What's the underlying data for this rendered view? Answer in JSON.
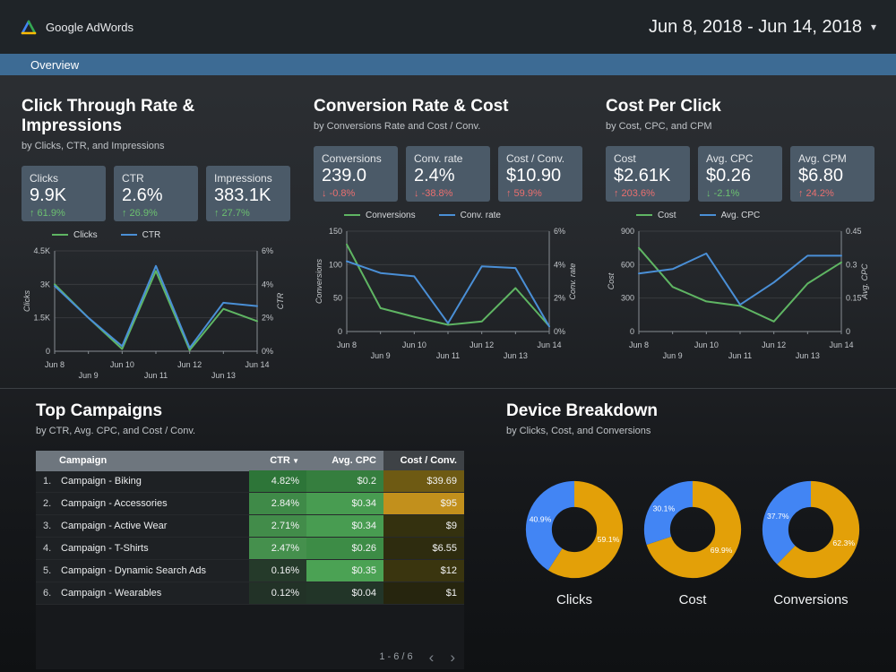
{
  "topbar": {
    "brand": "Google AdWords",
    "date_range": "Jun 8, 2018 - Jun 14, 2018"
  },
  "tab": {
    "label": "Overview"
  },
  "theme": {
    "tab_blue": "#3d6b94",
    "card_bg": "#4b5a68",
    "positive_green": "#6cc070",
    "negative_red": "#ea6f6f",
    "chart_green": "#5fb563",
    "chart_blue": "#4a8fd6",
    "donut_gold": "#e3a008",
    "donut_blue": "#4285f4",
    "panel_bg": "#17191c",
    "table_header_gray": "#6e767e"
  },
  "sections": [
    {
      "title": "Click Through Rate & Impressions",
      "subtitle": "by Clicks, CTR, and Impressions",
      "scorecards": [
        {
          "label": "Clicks",
          "value": "9.9K",
          "delta": "61.9%",
          "direction": "up",
          "sentiment": "positive"
        },
        {
          "label": "CTR",
          "value": "2.6%",
          "delta": "26.9%",
          "direction": "up",
          "sentiment": "positive"
        },
        {
          "label": "Impressions",
          "value": "383.1K",
          "delta": "27.7%",
          "direction": "up",
          "sentiment": "positive"
        }
      ]
    },
    {
      "title": "Conversion Rate & Cost",
      "subtitle": "by Conversions Rate and Cost / Conv.",
      "scorecards": [
        {
          "label": "Conversions",
          "value": "239.0",
          "delta": "-0.8%",
          "direction": "down",
          "sentiment": "negative"
        },
        {
          "label": "Conv. rate",
          "value": "2.4%",
          "delta": "-38.8%",
          "direction": "down",
          "sentiment": "negative"
        },
        {
          "label": "Cost / Conv.",
          "value": "$10.90",
          "delta": "59.9%",
          "direction": "up",
          "sentiment": "negative"
        }
      ]
    },
    {
      "title": "Cost Per Click",
      "subtitle": "by Cost, CPC, and CPM",
      "scorecards": [
        {
          "label": "Cost",
          "value": "$2.61K",
          "delta": "203.6%",
          "direction": "up",
          "sentiment": "negative"
        },
        {
          "label": "Avg. CPC",
          "value": "$0.26",
          "delta": "-2.1%",
          "direction": "down",
          "sentiment": "positive"
        },
        {
          "label": "Avg. CPM",
          "value": "$6.80",
          "delta": "24.2%",
          "direction": "up",
          "sentiment": "negative"
        }
      ]
    }
  ],
  "bottom": {
    "campaigns_title": "Top Campaigns",
    "campaigns_subtitle": "by CTR, Avg. CPC, and Cost / Conv.",
    "devices_title": "Device Breakdown",
    "devices_subtitle": "by Clicks, Cost, and Conversions"
  },
  "chart_data": [
    {
      "id": "clicks_ctr_trend",
      "type": "line",
      "x": [
        "Jun 8",
        "Jun 9",
        "Jun 10",
        "Jun 11",
        "Jun 12",
        "Jun 13",
        "Jun 14"
      ],
      "series": [
        {
          "name": "Clicks",
          "axis": "left",
          "color": "#5fb563",
          "values": [
            3000,
            1500,
            100,
            3600,
            50,
            1900,
            1350
          ]
        },
        {
          "name": "CTR",
          "axis": "right",
          "color": "#4a8fd6",
          "values": [
            3.9,
            2.0,
            0.3,
            5.1,
            0.2,
            2.9,
            2.7
          ]
        }
      ],
      "left_axis": {
        "title": "Clicks",
        "min": 0,
        "max": 4500,
        "ticks": [
          "0",
          "1.5K",
          "3K",
          "4.5K"
        ]
      },
      "right_axis": {
        "title": "CTR",
        "min": 0,
        "max": 6,
        "ticks": [
          "0%",
          "2%",
          "4%",
          "6%"
        ]
      },
      "grid": true,
      "legend_position": "top"
    },
    {
      "id": "conversions_rate_trend",
      "type": "line",
      "x": [
        "Jun 8",
        "Jun 9",
        "Jun 10",
        "Jun 11",
        "Jun 12",
        "Jun 13",
        "Jun 14"
      ],
      "series": [
        {
          "name": "Conversions",
          "axis": "left",
          "color": "#5fb563",
          "values": [
            130,
            35,
            22,
            10,
            15,
            65,
            8
          ]
        },
        {
          "name": "Conv. rate",
          "axis": "right",
          "color": "#4a8fd6",
          "values": [
            4.2,
            3.5,
            3.3,
            0.5,
            3.9,
            3.8,
            0.3
          ]
        }
      ],
      "left_axis": {
        "title": "Conversions",
        "min": 0,
        "max": 150,
        "ticks": [
          "0",
          "50",
          "100",
          "150"
        ]
      },
      "right_axis": {
        "title": "Conv. rate",
        "min": 0,
        "max": 6,
        "ticks": [
          "0%",
          "2%",
          "4%",
          "6%"
        ]
      },
      "grid": true,
      "legend_position": "top"
    },
    {
      "id": "cost_cpc_trend",
      "type": "line",
      "x": [
        "Jun 8",
        "Jun 9",
        "Jun 10",
        "Jun 11",
        "Jun 12",
        "Jun 13",
        "Jun 14"
      ],
      "series": [
        {
          "name": "Cost",
          "axis": "left",
          "color": "#5fb563",
          "values": [
            750,
            400,
            270,
            230,
            90,
            430,
            620
          ]
        },
        {
          "name": "Avg. CPC",
          "axis": "right",
          "color": "#4a8fd6",
          "values": [
            0.26,
            0.28,
            0.35,
            0.12,
            0.22,
            0.34,
            0.34
          ]
        }
      ],
      "left_axis": {
        "title": "Cost",
        "min": 0,
        "max": 900,
        "ticks": [
          "0",
          "300",
          "600",
          "900"
        ]
      },
      "right_axis": {
        "title": "Avg. CPC",
        "min": 0,
        "max": 0.45,
        "ticks": [
          "0",
          "0.15",
          "0.3",
          "0.45"
        ]
      },
      "grid": true,
      "legend_position": "top"
    },
    {
      "id": "top_campaigns_table",
      "type": "table",
      "columns": [
        {
          "key": "campaign",
          "label": "Campaign"
        },
        {
          "key": "ctr",
          "label": "CTR",
          "sort": "desc"
        },
        {
          "key": "cpc",
          "label": "Avg. CPC"
        },
        {
          "key": "cost",
          "label": "Cost / Conv."
        }
      ],
      "rows": [
        {
          "num": "1.",
          "name": "Campaign - Biking",
          "ctr": "4.82%",
          "ctr_bg": "#2d7538",
          "cpc": "$0.2",
          "cpc_bg": "#357e3e",
          "cost": "$39.69",
          "cost_bg": "#6e5a13"
        },
        {
          "num": "2.",
          "name": "Campaign - Accessories",
          "ctr": "2.84%",
          "ctr_bg": "#3f8a48",
          "cpc": "$0.34",
          "cpc_bg": "#489c51",
          "cost": "$95",
          "cost_bg": "#c2901c"
        },
        {
          "num": "3.",
          "name": "Campaign - Active Wear",
          "ctr": "2.71%",
          "ctr_bg": "#428c4a",
          "cpc": "$0.34",
          "cpc_bg": "#489c51",
          "cost": "$9",
          "cost_bg": "#34310f"
        },
        {
          "num": "4.",
          "name": "Campaign - T-Shirts",
          "ctr": "2.47%",
          "ctr_bg": "#45904d",
          "cpc": "$0.26",
          "cpc_bg": "#3d8c46",
          "cost": "$6.55",
          "cost_bg": "#2e2c0f"
        },
        {
          "num": "5.",
          "name": "Campaign - Dynamic Search Ads",
          "ctr": "0.16%",
          "ctr_bg": "#253a2a",
          "cpc": "$0.35",
          "cpc_bg": "#4ba254",
          "cost": "$12",
          "cost_bg": "#3a350f"
        },
        {
          "num": "6.",
          "name": "Campaign - Wearables",
          "ctr": "0.12%",
          "ctr_bg": "#223227",
          "cpc": "$0.04",
          "cpc_bg": "#223528",
          "cost": "$1",
          "cost_bg": "#26250e"
        }
      ],
      "pagination": "1 - 6 / 6"
    },
    {
      "id": "clicks_donut",
      "type": "pie",
      "title": "Clicks",
      "slices": [
        {
          "label": "59.1%",
          "value": 59.1,
          "color": "#e3a008"
        },
        {
          "label": "40.9%",
          "value": 40.9,
          "color": "#4285f4"
        }
      ]
    },
    {
      "id": "cost_donut",
      "type": "pie",
      "title": "Cost",
      "slices": [
        {
          "label": "69.9%",
          "value": 69.9,
          "color": "#e3a008"
        },
        {
          "label": "30.1%",
          "value": 30.1,
          "color": "#4285f4"
        }
      ]
    },
    {
      "id": "conversions_donut",
      "type": "pie",
      "title": "Conversions",
      "slices": [
        {
          "label": "62.3%",
          "value": 62.3,
          "color": "#e3a008"
        },
        {
          "label": "37.7%",
          "value": 37.7,
          "color": "#4285f4"
        }
      ]
    }
  ]
}
